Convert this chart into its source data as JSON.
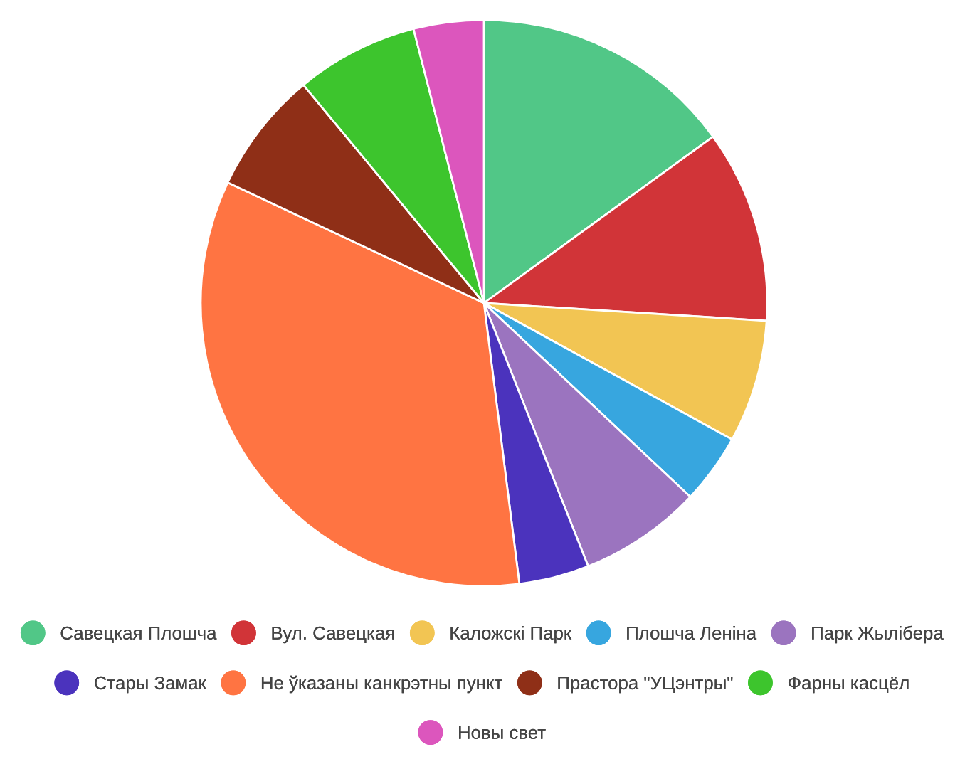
{
  "chart_data": {
    "type": "pie",
    "categories": [
      "Савецкая Плошча",
      "Вул. Савецкая",
      "Каложскі Парк",
      "Плошча Леніна",
      "Парк Жылібера",
      "Стары Замак",
      "Не ўказаны канкрэтны пункт",
      "Прастора \"УЦэнтры\"",
      "Фарны касцёл",
      "Новы свет"
    ],
    "values": [
      15,
      11,
      7,
      4,
      7,
      4,
      34,
      7,
      7,
      4
    ],
    "colors": [
      "#51c787",
      "#d13438",
      "#f2c553",
      "#37a6df",
      "#9b74bf",
      "#4b33bd",
      "#ff7442",
      "#8f2f17",
      "#3dc52d",
      "#dc56bd"
    ],
    "legend": "bottom"
  }
}
